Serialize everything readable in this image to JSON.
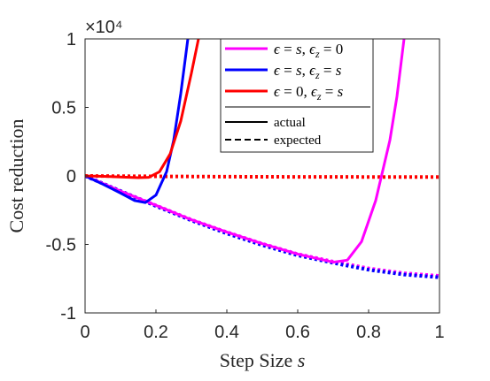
{
  "chart_data": {
    "type": "line",
    "xlabel": "Step Size s",
    "ylabel": "Cost reduction",
    "exponent_label": "×10⁴",
    "xlim": [
      0,
      1
    ],
    "ylim": [
      -10000,
      10000
    ],
    "x_ticks": [
      0,
      0.2,
      0.4,
      0.6,
      0.8,
      1
    ],
    "x_tick_labels": [
      "0",
      "0.2",
      "0.4",
      "0.6",
      "0.8",
      "1"
    ],
    "y_ticks": [
      -10000,
      -5000,
      0,
      5000,
      10000
    ],
    "y_tick_labels": [
      "-1",
      "-0.5",
      "0",
      "0.5",
      "1"
    ],
    "grid": false,
    "legend_position": "top-right",
    "legend": {
      "series": [
        {
          "label": "ε = s, ε_z = 0",
          "color": "#ff00ff"
        },
        {
          "label": "ε = s, ε_z = s",
          "color": "#0000ff"
        },
        {
          "label": "ε = 0, ε_z = s",
          "color": "#ff0000"
        }
      ],
      "styles": [
        {
          "label": "actual",
          "dash": "solid"
        },
        {
          "label": "expected",
          "dash": "dashed"
        }
      ]
    },
    "series": [
      {
        "name": "ε = s, ε_z = 0 (actual)",
        "color": "#ff00ff",
        "dash": "solid",
        "x": [
          0,
          0.1,
          0.2,
          0.3,
          0.4,
          0.5,
          0.6,
          0.7,
          0.74,
          0.78,
          0.82,
          0.86,
          0.88,
          0.9
        ],
        "y": [
          0,
          -1100,
          -2150,
          -3200,
          -4100,
          -4950,
          -5700,
          -6300,
          -6150,
          -4800,
          -1800,
          2600,
          5800,
          10000
        ]
      },
      {
        "name": "ε = s, ε_z = 0 (expected)",
        "color": "#ff00ff",
        "dash": "dotted",
        "x": [
          0,
          0.1,
          0.2,
          0.3,
          0.4,
          0.5,
          0.6,
          0.7,
          0.8,
          0.9,
          1.0
        ],
        "y": [
          0,
          -1100,
          -2150,
          -3200,
          -4100,
          -4950,
          -5700,
          -6250,
          -6750,
          -7100,
          -7300
        ]
      },
      {
        "name": "ε = s, ε_z = s (actual)",
        "color": "#0000ff",
        "dash": "solid",
        "x": [
          0,
          0.05,
          0.1,
          0.14,
          0.17,
          0.2,
          0.23,
          0.25,
          0.27,
          0.29
        ],
        "y": [
          0,
          -600,
          -1250,
          -1800,
          -1950,
          -1400,
          300,
          2600,
          6000,
          10000
        ]
      },
      {
        "name": "ε = s, ε_z = s (expected)",
        "color": "#0000ff",
        "dash": "dotted",
        "x": [
          0,
          0.1,
          0.2,
          0.3,
          0.4,
          0.5,
          0.6,
          0.7,
          0.8,
          0.9,
          1.0
        ],
        "y": [
          0,
          -1100,
          -2200,
          -3250,
          -4200,
          -5050,
          -5800,
          -6350,
          -6850,
          -7200,
          -7400
        ]
      },
      {
        "name": "ε = 0, ε_z = s (actual)",
        "color": "#ff0000",
        "dash": "solid",
        "x": [
          0,
          0.05,
          0.1,
          0.15,
          0.18,
          0.21,
          0.24,
          0.27,
          0.3,
          0.32
        ],
        "y": [
          0,
          -30,
          -80,
          -130,
          -100,
          300,
          1600,
          4000,
          7500,
          10000
        ]
      },
      {
        "name": "ε = 0, ε_z = s (expected)",
        "color": "#ff0000",
        "dash": "dotted",
        "x": [
          0,
          0.2,
          0.4,
          0.6,
          0.8,
          1.0
        ],
        "y": [
          0,
          -30,
          -60,
          -70,
          -80,
          -80
        ]
      }
    ]
  }
}
